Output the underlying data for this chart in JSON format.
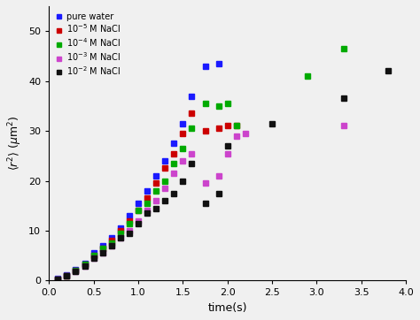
{
  "title": "",
  "xlabel": "time(s)",
  "xlim": [
    0.0,
    4.0
  ],
  "ylim": [
    0,
    55
  ],
  "series": [
    {
      "label": "pure water",
      "color": "#1a1aff",
      "x": [
        0.1,
        0.2,
        0.3,
        0.4,
        0.5,
        0.6,
        0.7,
        0.8,
        0.9,
        1.0,
        1.1,
        1.2,
        1.3,
        1.4,
        1.5,
        1.6,
        1.75,
        1.9
      ],
      "y": [
        0.4,
        1.2,
        2.2,
        3.5,
        5.5,
        7.0,
        8.5,
        10.5,
        13.0,
        15.5,
        18.0,
        21.0,
        24.0,
        27.5,
        31.5,
        37.0,
        43.0,
        43.5
      ]
    },
    {
      "label": "10^{-5} M NaCl",
      "color": "#cc0000",
      "x": [
        0.1,
        0.2,
        0.3,
        0.4,
        0.5,
        0.6,
        0.7,
        0.8,
        0.9,
        1.0,
        1.1,
        1.2,
        1.3,
        1.4,
        1.5,
        1.6,
        1.75,
        1.9,
        2.0,
        2.1
      ],
      "y": [
        0.3,
        1.0,
        2.0,
        3.2,
        5.0,
        6.5,
        8.0,
        10.0,
        12.0,
        14.0,
        16.5,
        19.5,
        22.5,
        25.5,
        29.5,
        33.5,
        30.0,
        30.5,
        31.0,
        31.0
      ]
    },
    {
      "label": "10^{-4} M NaCl",
      "color": "#00aa00",
      "x": [
        0.1,
        0.2,
        0.3,
        0.4,
        0.5,
        0.6,
        0.7,
        0.8,
        0.9,
        1.0,
        1.1,
        1.2,
        1.3,
        1.4,
        1.5,
        1.6,
        1.75,
        1.9,
        2.0,
        2.1,
        2.9,
        3.3
      ],
      "y": [
        0.3,
        1.0,
        2.0,
        3.2,
        5.0,
        6.5,
        7.5,
        9.5,
        11.5,
        14.0,
        15.5,
        18.0,
        20.0,
        23.5,
        26.5,
        30.5,
        35.5,
        35.0,
        35.5,
        31.0,
        41.0,
        46.5
      ]
    },
    {
      "label": "10^{-3} M NaCl",
      "color": "#cc44cc",
      "x": [
        0.1,
        0.2,
        0.3,
        0.4,
        0.5,
        0.6,
        0.7,
        0.8,
        0.9,
        1.0,
        1.1,
        1.2,
        1.3,
        1.4,
        1.5,
        1.6,
        1.75,
        1.9,
        2.0,
        2.1,
        2.2,
        3.3
      ],
      "y": [
        0.3,
        1.0,
        1.8,
        3.0,
        4.5,
        5.5,
        7.0,
        8.5,
        10.0,
        12.0,
        14.0,
        16.0,
        18.5,
        21.5,
        24.0,
        25.5,
        19.5,
        21.0,
        25.5,
        29.0,
        29.5,
        31.0
      ]
    },
    {
      "label": "10^{-2} M NaCl",
      "color": "#111111",
      "x": [
        0.1,
        0.2,
        0.3,
        0.4,
        0.5,
        0.6,
        0.7,
        0.8,
        0.9,
        1.0,
        1.1,
        1.2,
        1.3,
        1.4,
        1.5,
        1.6,
        1.75,
        1.9,
        2.0,
        2.5,
        3.3,
        3.8
      ],
      "y": [
        0.3,
        0.9,
        1.8,
        3.0,
        4.5,
        5.5,
        7.0,
        8.5,
        9.5,
        11.5,
        13.5,
        14.5,
        16.0,
        17.5,
        20.0,
        23.5,
        15.5,
        17.5,
        27.0,
        31.5,
        36.5,
        42.0
      ]
    }
  ],
  "xticks": [
    0.0,
    0.5,
    1.0,
    1.5,
    2.0,
    2.5,
    3.0,
    3.5,
    4.0
  ],
  "yticks": [
    0,
    10,
    20,
    30,
    40,
    50
  ],
  "marker": "s",
  "markersize": 4
}
